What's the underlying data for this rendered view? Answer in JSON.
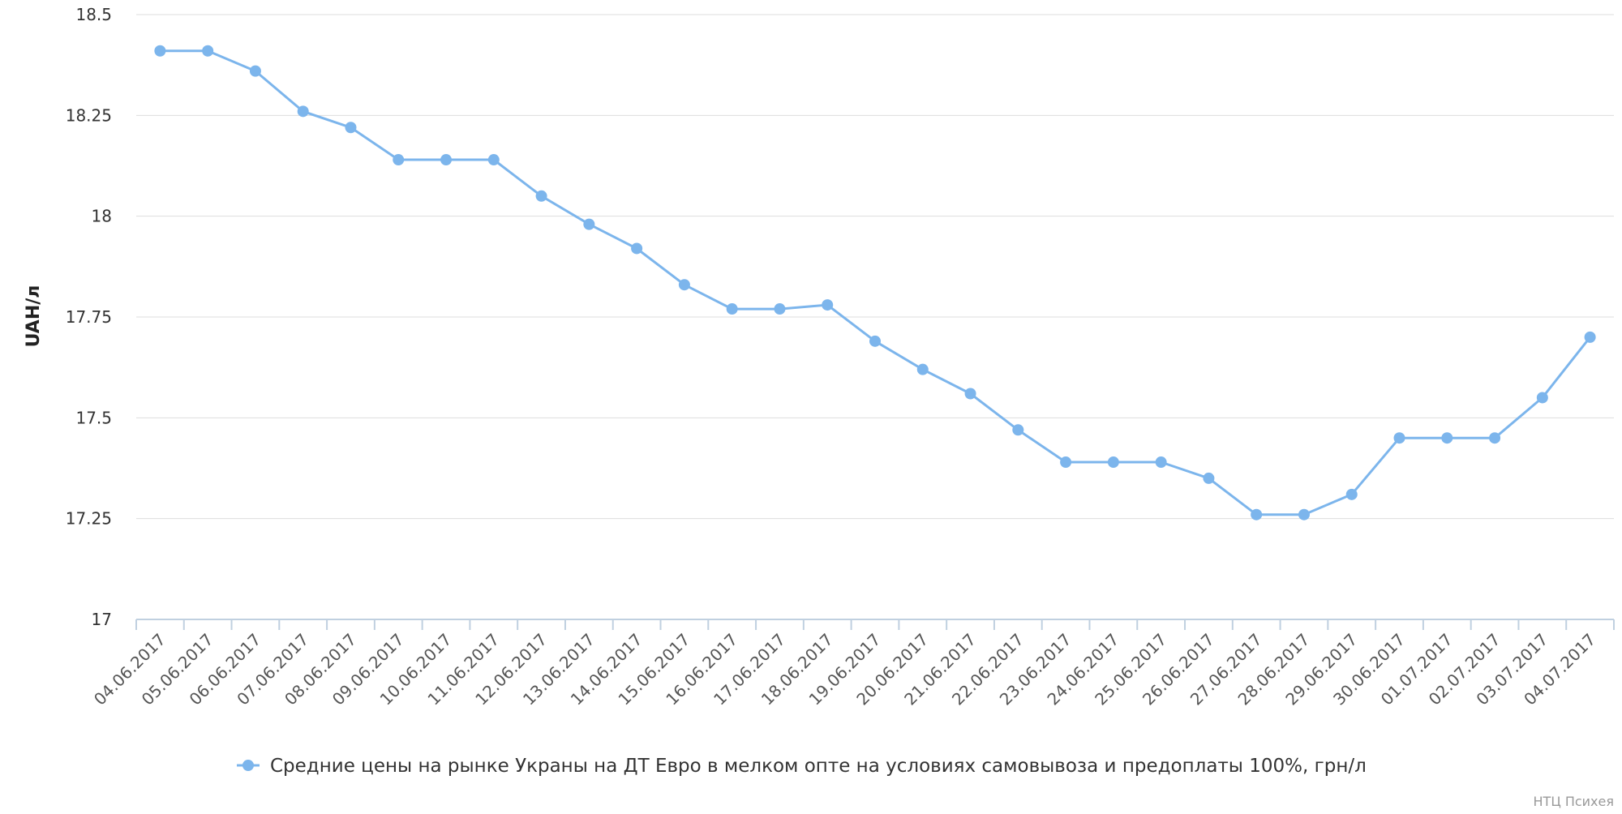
{
  "chart_data": {
    "type": "line",
    "title": "",
    "xlabel": "",
    "ylabel": "UAH/л",
    "ylim": [
      17,
      18.5
    ],
    "yticks": [
      "17",
      "17.25",
      "17.5",
      "17.75",
      "18",
      "18.25",
      "18.5"
    ],
    "grid": true,
    "legend_position": "bottom",
    "credit": "НТЦ Психея",
    "colors": {
      "series": "#7cb5ec",
      "grid": "#dddddd",
      "axis": "#c0d0e0"
    },
    "categories": [
      "04.06.2017",
      "05.06.2017",
      "06.06.2017",
      "07.06.2017",
      "08.06.2017",
      "09.06.2017",
      "10.06.2017",
      "11.06.2017",
      "12.06.2017",
      "13.06.2017",
      "14.06.2017",
      "15.06.2017",
      "16.06.2017",
      "17.06.2017",
      "18.06.2017",
      "19.06.2017",
      "20.06.2017",
      "21.06.2017",
      "22.06.2017",
      "23.06.2017",
      "24.06.2017",
      "25.06.2017",
      "26.06.2017",
      "27.06.2017",
      "28.06.2017",
      "29.06.2017",
      "30.06.2017",
      "01.07.2017",
      "02.07.2017",
      "03.07.2017",
      "04.07.2017"
    ],
    "series": [
      {
        "name": "Средние цены на рынке Украны на ДТ Евро в мелком опте на условиях самовывоза и предоплаты 100%, грн/л",
        "values": [
          18.41,
          18.41,
          18.36,
          18.26,
          18.22,
          18.14,
          18.14,
          18.14,
          18.05,
          17.98,
          17.92,
          17.83,
          17.77,
          17.77,
          17.78,
          17.69,
          17.62,
          17.56,
          17.47,
          17.39,
          17.39,
          17.39,
          17.35,
          17.26,
          17.26,
          17.31,
          17.45,
          17.45,
          17.45,
          17.55,
          17.7
        ]
      }
    ]
  }
}
